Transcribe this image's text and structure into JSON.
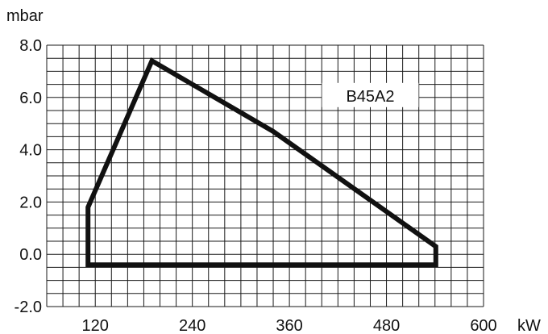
{
  "chart_data": {
    "type": "line",
    "title": "",
    "xlabel": "kW",
    "ylabel": "mbar",
    "xlim": [
      60,
      600
    ],
    "ylim": [
      -2.0,
      8.0
    ],
    "x_ticks": [
      120,
      240,
      360,
      480,
      600
    ],
    "x_tick_labels": [
      "120",
      "240",
      "360",
      "480",
      "600"
    ],
    "y_ticks": [
      -2.0,
      0.0,
      2.0,
      4.0,
      6.0,
      8.0
    ],
    "y_tick_labels": [
      "-2.0",
      "0.0",
      "2.0",
      "4.0",
      "6.0",
      "8.0"
    ],
    "grid": true,
    "series": [
      {
        "name": "B45A2",
        "color": "#111111",
        "closed": true,
        "x": [
          111,
          111,
          190,
          340,
          541,
          541
        ],
        "y": [
          -0.4,
          1.8,
          7.4,
          4.7,
          0.3,
          -0.4
        ]
      }
    ],
    "annotations": [
      {
        "text": "B45A2",
        "x": 460,
        "y": 6.0
      }
    ]
  }
}
